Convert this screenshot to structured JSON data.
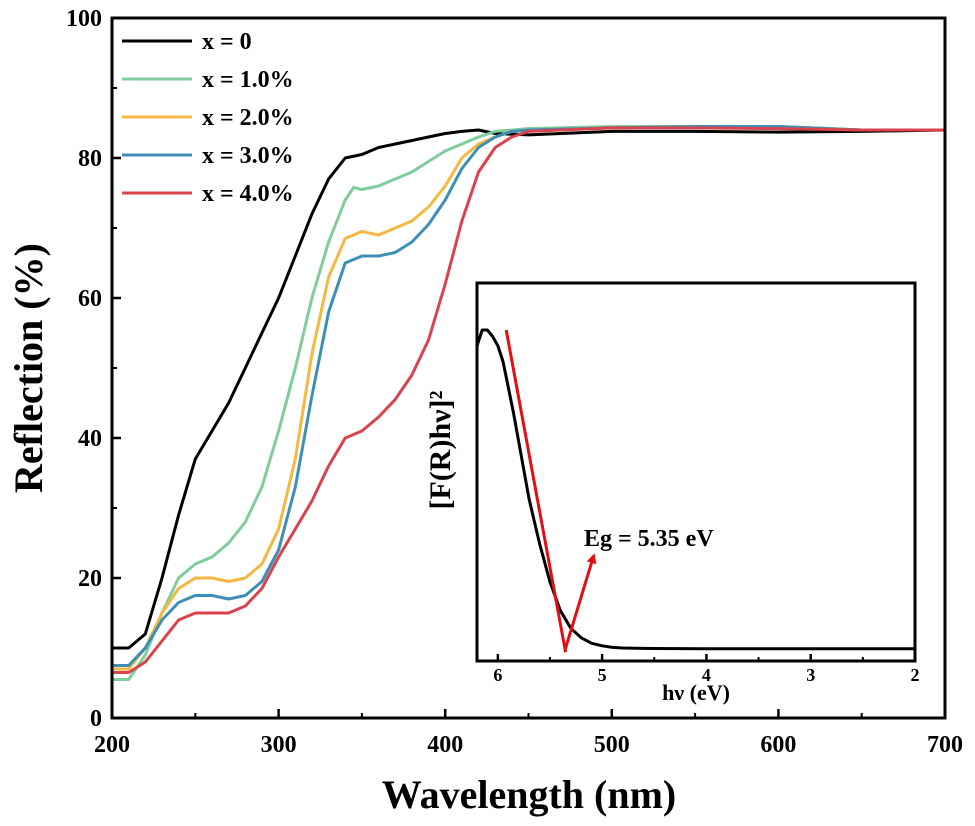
{
  "chart_data": [
    {
      "type": "line",
      "xlabel": "Wavelength (nm)",
      "ylabel": "Reflection (%)",
      "xlim": [
        200,
        700
      ],
      "ylim": [
        0,
        100
      ],
      "xticks": [
        "200",
        "300",
        "400",
        "500",
        "600",
        "700"
      ],
      "yticks": [
        "0",
        "20",
        "40",
        "60",
        "80",
        "100"
      ],
      "grid": false,
      "legend_position": "top-left",
      "series": [
        {
          "name": "x = 0",
          "color": "#000000",
          "x": [
            200,
            210,
            220,
            230,
            240,
            250,
            260,
            270,
            280,
            290,
            300,
            310,
            320,
            330,
            340,
            350,
            360,
            370,
            380,
            390,
            400,
            410,
            420,
            430,
            450,
            500,
            550,
            600,
            650,
            700
          ],
          "y": [
            10,
            10,
            12,
            20,
            29,
            37,
            41,
            45,
            50,
            55,
            60,
            66,
            72,
            77,
            80,
            80.5,
            81.5,
            82,
            82.5,
            83,
            83.5,
            83.8,
            84,
            83.5,
            83.3,
            83.8,
            83.8,
            83.7,
            83.8,
            84
          ]
        },
        {
          "name": "x = 1.0%",
          "color": "#7fcc9c",
          "x": [
            200,
            210,
            220,
            230,
            240,
            250,
            260,
            270,
            280,
            290,
            300,
            310,
            320,
            330,
            340,
            345,
            350,
            360,
            370,
            380,
            390,
            400,
            410,
            420,
            430,
            450,
            500,
            550,
            600,
            650,
            700
          ],
          "y": [
            5.5,
            5.5,
            9,
            15,
            20,
            22,
            23,
            25,
            28,
            33,
            41,
            50,
            60,
            68,
            74,
            75.8,
            75.5,
            76,
            77,
            78,
            79.5,
            81,
            82,
            83,
            83.8,
            84.2,
            84.5,
            84.5,
            84.5,
            84,
            84
          ]
        },
        {
          "name": "x = 2.0%",
          "color": "#f5b841",
          "x": [
            200,
            210,
            220,
            230,
            240,
            250,
            260,
            270,
            280,
            290,
            300,
            310,
            320,
            330,
            340,
            350,
            360,
            370,
            380,
            390,
            400,
            410,
            420,
            430,
            440,
            450,
            500,
            550,
            600,
            650,
            700
          ],
          "y": [
            7,
            7,
            10,
            15,
            18.5,
            20,
            20,
            19.5,
            20,
            22,
            27,
            37,
            52,
            63,
            68.5,
            69.5,
            69,
            70,
            71,
            73,
            76,
            80,
            82,
            83,
            83.8,
            84,
            84.3,
            84.5,
            84.5,
            84,
            84
          ]
        },
        {
          "name": "x = 3.0%",
          "color": "#3d8fb8",
          "x": [
            200,
            210,
            220,
            230,
            240,
            250,
            260,
            270,
            280,
            290,
            300,
            310,
            320,
            330,
            340,
            350,
            360,
            370,
            380,
            390,
            400,
            410,
            420,
            430,
            440,
            450,
            500,
            550,
            600,
            650,
            700
          ],
          "y": [
            7.5,
            7.5,
            10,
            14,
            16.5,
            17.5,
            17.5,
            17,
            17.5,
            19.5,
            24,
            33,
            46,
            58,
            65,
            66,
            66,
            66.5,
            68,
            70.5,
            74,
            78.5,
            81.5,
            83,
            83.8,
            84,
            84.3,
            84.5,
            84.5,
            84,
            84
          ]
        },
        {
          "name": "x = 4.0%",
          "color": "#d9434c",
          "x": [
            200,
            210,
            220,
            230,
            240,
            250,
            260,
            270,
            280,
            290,
            300,
            310,
            320,
            330,
            340,
            350,
            360,
            370,
            380,
            390,
            400,
            410,
            420,
            430,
            440,
            450,
            500,
            550,
            600,
            650,
            700
          ],
          "y": [
            6.5,
            6.5,
            8,
            11,
            14,
            15,
            15,
            15,
            16,
            18.5,
            23,
            27,
            31,
            36,
            40,
            41,
            43,
            45.5,
            49,
            54,
            62,
            71,
            78,
            81.5,
            83,
            83.8,
            84.3,
            84.3,
            84.2,
            84,
            84
          ]
        }
      ]
    },
    {
      "type": "line",
      "xlabel": "hν (eV)",
      "ylabel": "[F(R)hν]²",
      "xlim": [
        6.2,
        2.0
      ],
      "xticks": [
        "6",
        "5",
        "4",
        "3",
        "2"
      ],
      "annotation": "Eg = 5.35 eV",
      "series": [
        {
          "color": "#000000",
          "x": [
            6.2,
            6.15,
            6.1,
            6.05,
            6.0,
            5.95,
            5.9,
            5.85,
            5.8,
            5.75,
            5.7,
            5.6,
            5.5,
            5.4,
            5.3,
            5.2,
            5.1,
            5.0,
            4.9,
            4.8,
            4.5,
            4.0,
            3.5,
            3.0,
            2.5,
            2.0
          ],
          "y": [
            0.95,
            1.0,
            1.0,
            0.98,
            0.95,
            0.9,
            0.82,
            0.74,
            0.65,
            0.56,
            0.47,
            0.33,
            0.21,
            0.12,
            0.065,
            0.035,
            0.018,
            0.01,
            0.005,
            0.003,
            0.0015,
            0.001,
            0.001,
            0.001,
            0.001,
            0.001
          ]
        },
        {
          "color": "#e10f0f",
          "x": [
            5.92,
            5.35
          ],
          "y": [
            1.0,
            -0.01
          ]
        }
      ]
    }
  ]
}
